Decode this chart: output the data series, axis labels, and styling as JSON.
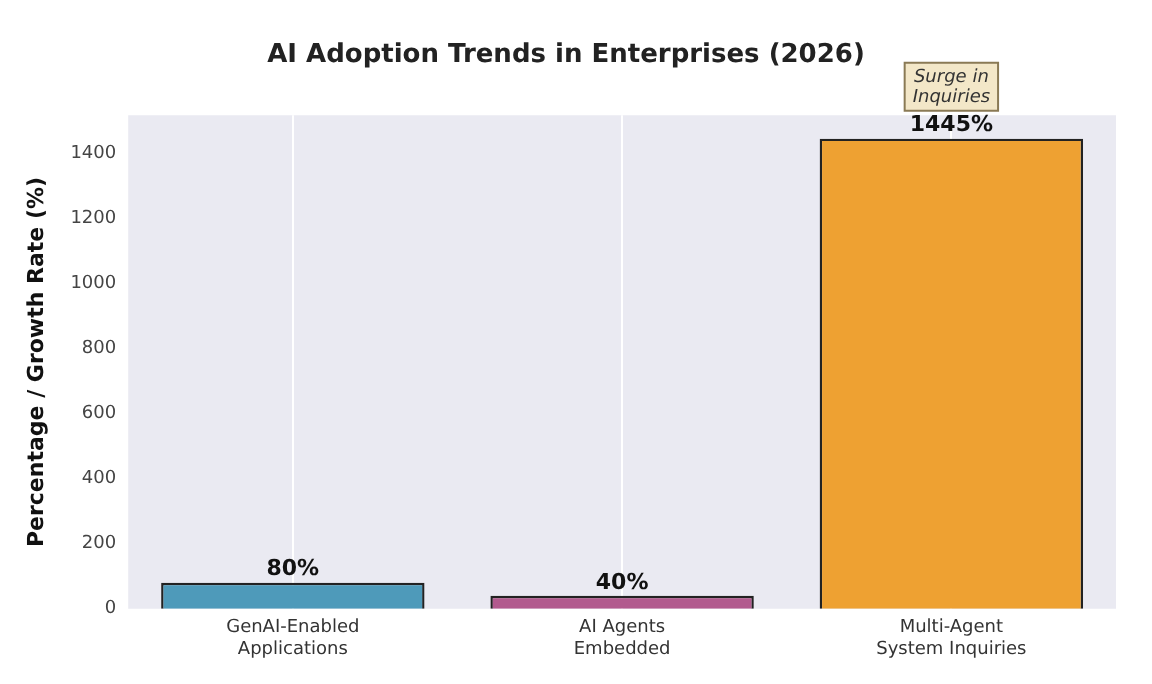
{
  "chart_data": {
    "type": "bar",
    "title": "AI Adoption Trends in Enterprises (2026)",
    "ylabel": "Percentage / Growth Rate (%)",
    "categories": [
      "GenAI-Enabled\nApplications",
      "AI Agents\nEmbedded",
      "Multi-Agent\nSystem Inquiries"
    ],
    "values": [
      80,
      40,
      1445
    ],
    "colors": [
      "#4e9aba",
      "#b25a8e",
      "#eea132"
    ],
    "value_labels": [
      "80%",
      "40%",
      "1445%"
    ],
    "annotations": [
      {
        "text": "Surge in\nInquiries",
        "x": "Multi-Agent\nSystem Inquiries",
        "y": 1445
      }
    ],
    "ylim": [
      0,
      1517
    ],
    "yticks": [
      0,
      200,
      400,
      600,
      800,
      1000,
      1200,
      1400
    ],
    "grid": "x",
    "legend": false
  }
}
